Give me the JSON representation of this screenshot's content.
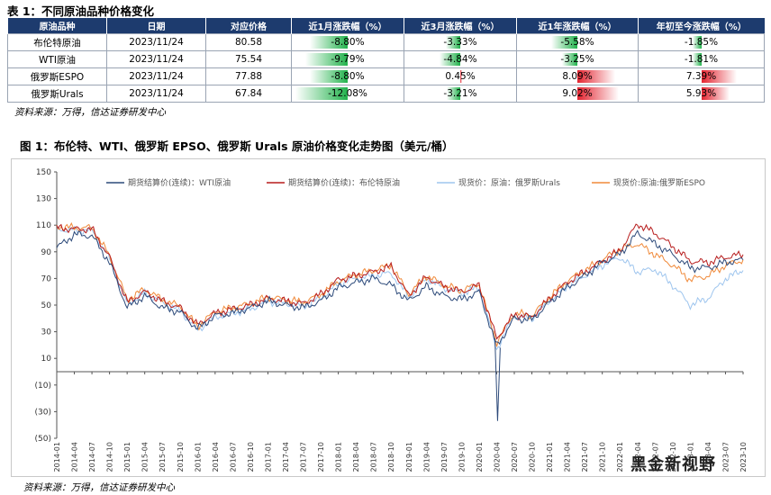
{
  "table1": {
    "title": "表 1：不同原油品种价格变化",
    "headers": [
      "原油品种",
      "日期",
      "对应价格",
      "近1月涨跌幅（%）",
      "近3月涨跌幅（%）",
      "近1年涨跌幅（%）",
      "年初至今涨跌幅（%）"
    ],
    "rows": [
      {
        "name": "布伦特原油",
        "date": "2023/11/24",
        "price": "80.58",
        "m1": -8.8,
        "m3": -3.33,
        "y1": -5.58,
        "ytd": -1.85
      },
      {
        "name": "WTI原油",
        "date": "2023/11/24",
        "price": "75.54",
        "m1": -9.79,
        "m3": -4.84,
        "y1": -3.25,
        "ytd": -1.81
      },
      {
        "name": "俄罗斯ESPO",
        "date": "2023/11/24",
        "price": "77.88",
        "m1": -8.8,
        "m3": 0.45,
        "y1": 8.09,
        "ytd": 7.39
      },
      {
        "name": "俄罗斯Urals",
        "date": "2023/11/24",
        "price": "67.84",
        "m1": -12.08,
        "m3": -3.21,
        "y1": 9.02,
        "ytd": 5.93
      }
    ],
    "display": [
      [
        "-8.80%",
        "-3.33%",
        "-5.58%",
        "-1.85%"
      ],
      [
        "-9.79%",
        "-4.84%",
        "-3.25%",
        "-1.81%"
      ],
      [
        "-8.80%",
        "0.45%",
        "8.09%",
        "7.39%"
      ],
      [
        "-12.08%",
        "-3.21%",
        "9.02%",
        "5.93%"
      ]
    ],
    "source": "资料来源：万得，信达证券研发中心"
  },
  "figure1": {
    "title": "图 1：布伦特、WTI、俄罗斯 EPSO、俄罗斯 Urals 原油价格变化走势图（美元/桶）",
    "source": "资料来源：万得，信达证券研发中心"
  },
  "watermark": "黑金新视野",
  "colors": {
    "header_bg": "#1d3b6e",
    "neg_bar": "#22b24c",
    "pos_bar": "#e3232f",
    "wti": "#2d4a7a",
    "brent": "#b71c1c",
    "urals": "#9ec5ee",
    "espo": "#f08a3a"
  },
  "chart_data": {
    "type": "line",
    "ylim": [
      -50,
      150
    ],
    "yticks": [
      "(50)",
      "(30)",
      "(10)",
      "10",
      "30",
      "50",
      "70",
      "90",
      "110",
      "130",
      "150"
    ],
    "ytick_values": [
      -50,
      -30,
      -10,
      10,
      30,
      50,
      70,
      90,
      110,
      130,
      150
    ],
    "x": [
      "2014-01",
      "2014-04",
      "2014-07",
      "2014-10",
      "2015-01",
      "2015-04",
      "2015-07",
      "2015-10",
      "2016-01",
      "2016-04",
      "2016-07",
      "2016-10",
      "2017-01",
      "2017-04",
      "2017-07",
      "2017-10",
      "2018-01",
      "2018-04",
      "2018-07",
      "2018-10",
      "2019-01",
      "2019-04",
      "2019-07",
      "2019-10",
      "2020-01",
      "2020-04",
      "2020-07",
      "2020-10",
      "2021-01",
      "2021-04",
      "2021-07",
      "2021-10",
      "2022-01",
      "2022-04",
      "2022-07",
      "2022-10",
      "2023-01",
      "2023-04",
      "2023-07",
      "2023-10"
    ],
    "series": [
      {
        "name": "期货结算价(连续)：WTI原油",
        "values": [
          93,
          103,
          102,
          82,
          48,
          57,
          48,
          45,
          32,
          42,
          44,
          48,
          53,
          50,
          48,
          53,
          63,
          67,
          70,
          65,
          53,
          64,
          57,
          54,
          60,
          19,
          40,
          39,
          52,
          63,
          72,
          82,
          88,
          104,
          96,
          88,
          78,
          78,
          82,
          84
        ]
      },
      {
        "name": "期货结算价(连续)：布伦特原油",
        "values": [
          108,
          107,
          107,
          86,
          52,
          60,
          53,
          48,
          35,
          44,
          47,
          50,
          55,
          53,
          51,
          58,
          69,
          72,
          75,
          79,
          57,
          71,
          64,
          60,
          65,
          25,
          43,
          41,
          55,
          67,
          75,
          83,
          91,
          111,
          104,
          94,
          83,
          82,
          86,
          88
        ]
      },
      {
        "name": "现货价：原油：俄罗斯Urals",
        "values": [
          107,
          106,
          106,
          85,
          51,
          59,
          52,
          46,
          31,
          41,
          44,
          47,
          53,
          51,
          49,
          55,
          66,
          70,
          72,
          74,
          56,
          70,
          63,
          59,
          63,
          17,
          42,
          40,
          53,
          64,
          72,
          80,
          86,
          75,
          77,
          65,
          50,
          55,
          70,
          76
        ]
      },
      {
        "name": "现货价:原油:俄罗斯ESPO",
        "values": [
          109,
          108,
          108,
          87,
          54,
          62,
          54,
          49,
          34,
          45,
          48,
          51,
          56,
          54,
          52,
          58,
          68,
          73,
          76,
          80,
          58,
          72,
          65,
          61,
          66,
          22,
          44,
          42,
          56,
          68,
          76,
          84,
          92,
          96,
          88,
          80,
          69,
          72,
          80,
          84
        ]
      }
    ]
  }
}
